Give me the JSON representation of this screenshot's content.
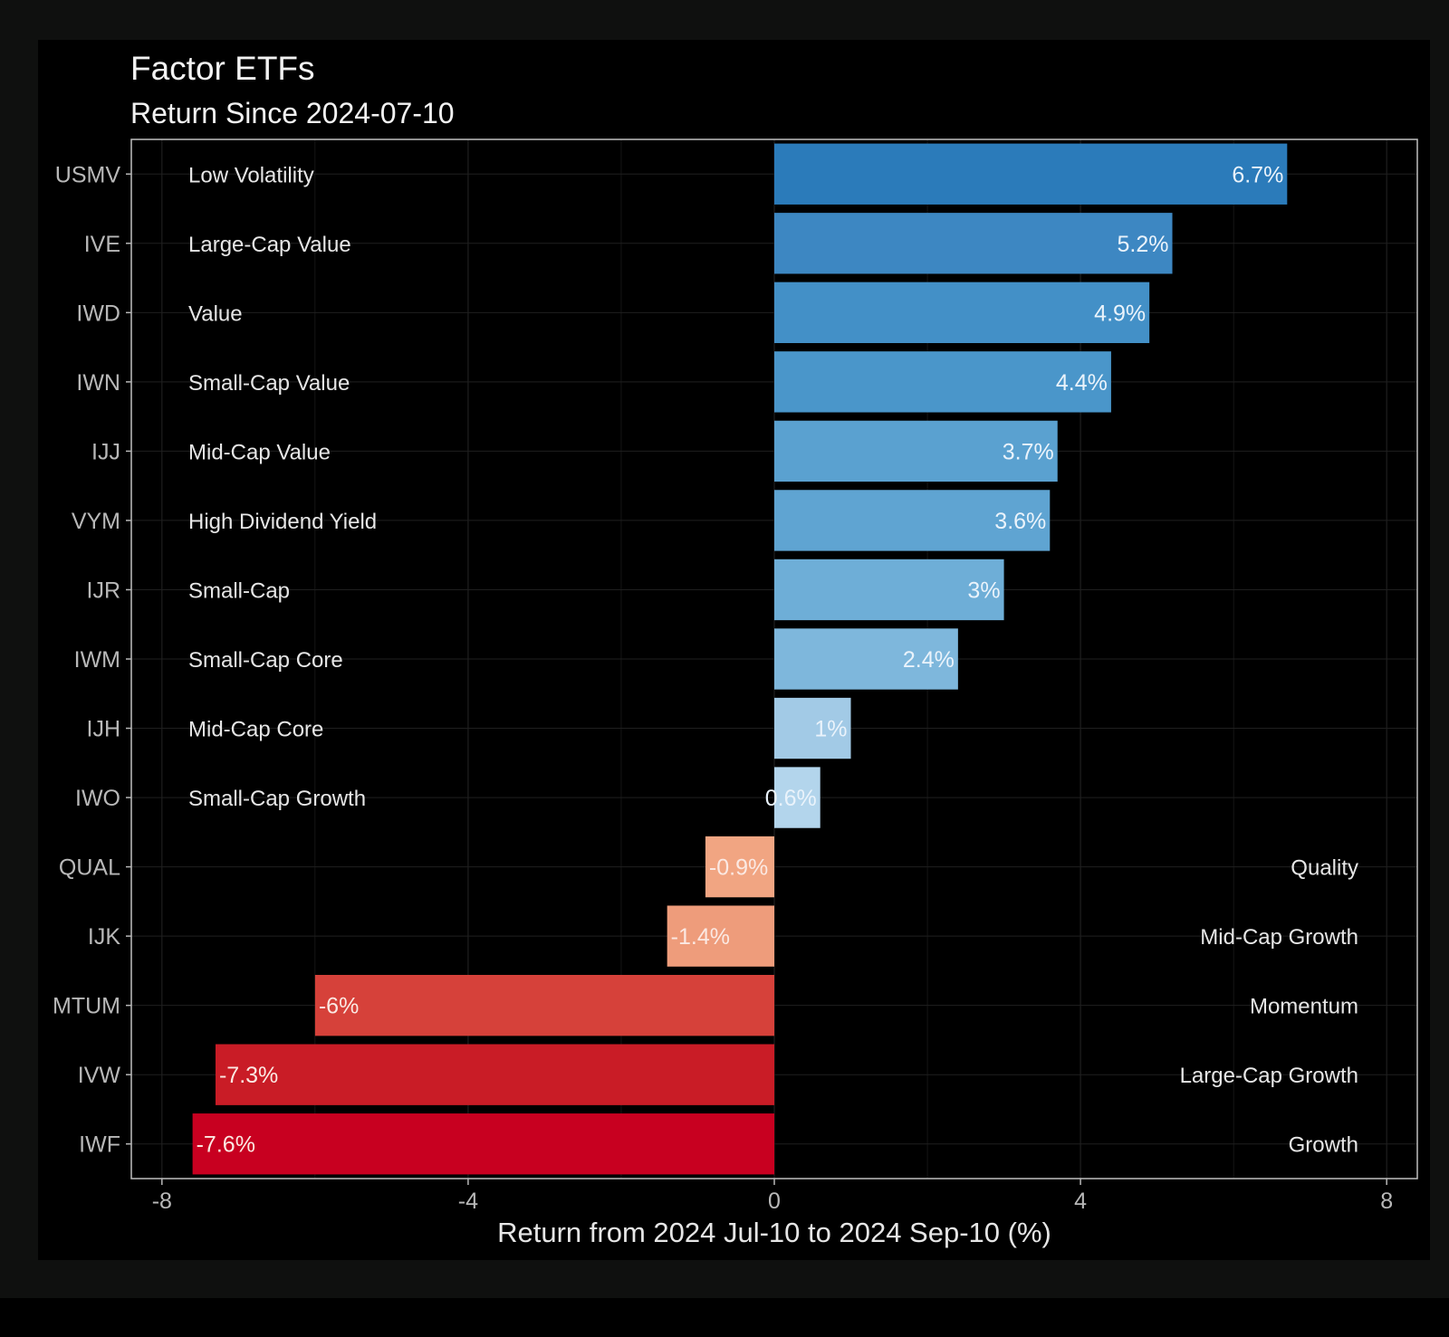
{
  "colors": {
    "frame": "#0f100f",
    "panel": "#000000",
    "gridline": "#1f1f1f",
    "border": "#bfbfbf",
    "tick": "#b8b8b8"
  },
  "chart_data": {
    "type": "bar",
    "orientation": "horizontal",
    "title": "Factor ETFs",
    "subtitle": "Return Since 2024-07-10",
    "xlabel": "Return from 2024 Jul-10 to 2024 Sep-10 (%)",
    "ylabel": "",
    "xlim": [
      -8.4,
      8.4
    ],
    "xticks": [
      -8,
      -4,
      0,
      4,
      8
    ],
    "xtick_labels": [
      "-8",
      "-4",
      "0",
      "4",
      "8"
    ],
    "grid": true,
    "legend": "none",
    "categories": [
      "USMV",
      "IVE",
      "IWD",
      "IWN",
      "IJJ",
      "VYM",
      "IJR",
      "IWM",
      "IJH",
      "IWO",
      "QUAL",
      "IJK",
      "MTUM",
      "IVW",
      "IWF"
    ],
    "factor_labels": [
      "Low Volatility",
      "Large-Cap Value",
      "Value",
      "Small-Cap Value",
      "Mid-Cap Value",
      "High Dividend Yield",
      "Small-Cap",
      "Small-Cap Core",
      "Mid-Cap Core",
      "Small-Cap Growth",
      "Quality",
      "Mid-Cap Growth",
      "Momentum",
      "Large-Cap Growth",
      "Growth"
    ],
    "values": [
      6.7,
      5.2,
      4.9,
      4.4,
      3.7,
      3.6,
      3.0,
      2.4,
      1.0,
      0.6,
      -0.9,
      -1.4,
      -6.0,
      -7.3,
      -7.6
    ],
    "value_labels": [
      "6.7%",
      "5.2%",
      "4.9%",
      "4.4%",
      "3.7%",
      "3.6%",
      "3%",
      "2.4%",
      "1%",
      "0.6%",
      "-0.9%",
      "-1.4%",
      "-6%",
      "-7.3%",
      "-7.6%"
    ],
    "bar_colors": [
      "#2b7bba",
      "#3d87c2",
      "#4390c7",
      "#4a96ca",
      "#5aa1d0",
      "#5fa4d2",
      "#6eaed7",
      "#7eb7dc",
      "#a2cae6",
      "#b3d5ec",
      "#f1a582",
      "#ee9c7b",
      "#d6413a",
      "#c91c26",
      "#c80020"
    ]
  }
}
